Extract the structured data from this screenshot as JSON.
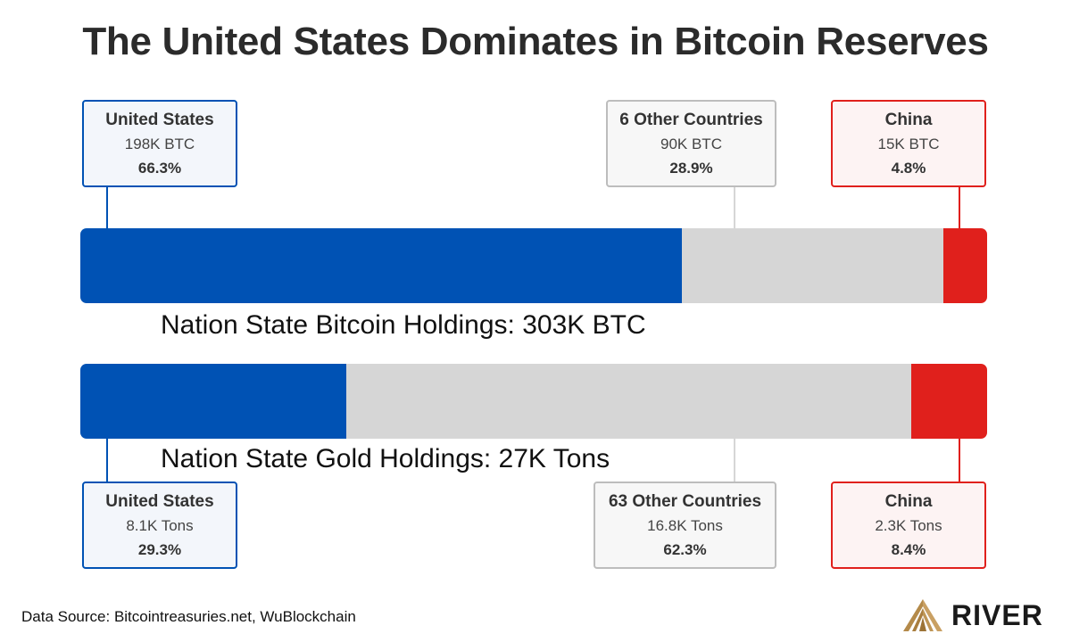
{
  "title": "The United States Dominates in Bitcoin Reserves",
  "colors": {
    "us": "#0052b4",
    "other": "#d6d6d6",
    "china": "#e0201c",
    "other_border": "#bdbdbd"
  },
  "chart_data": [
    {
      "type": "bar",
      "orientation": "horizontal-stacked",
      "label": "Nation State Bitcoin Holdings: 303K BTC",
      "segments": [
        {
          "key": "us",
          "name": "United States",
          "amount": "198K BTC",
          "pct_label": "66.3%",
          "value": 66.3
        },
        {
          "key": "other",
          "name": "6 Other Countries",
          "amount": "90K BTC",
          "pct_label": "28.9%",
          "value": 28.9
        },
        {
          "key": "china",
          "name": "China",
          "amount": "15K BTC",
          "pct_label": "4.8%",
          "value": 4.8
        }
      ]
    },
    {
      "type": "bar",
      "orientation": "horizontal-stacked",
      "label": "Nation State Gold Holdings: 27K Tons",
      "segments": [
        {
          "key": "us",
          "name": "United States",
          "amount": "8.1K Tons",
          "pct_label": "29.3%",
          "value": 29.3
        },
        {
          "key": "other",
          "name": "63 Other Countries",
          "amount": "16.8K Tons",
          "pct_label": "62.3%",
          "value": 62.3
        },
        {
          "key": "china",
          "name": "China",
          "amount": "2.3K Tons",
          "pct_label": "8.4%",
          "value": 8.4
        }
      ]
    }
  ],
  "footer": {
    "source": "Data Source: Bitcointreasuries.net, WuBlockchain",
    "logo_text": "RIVER",
    "logo_icon": "river-mountain-icon"
  }
}
